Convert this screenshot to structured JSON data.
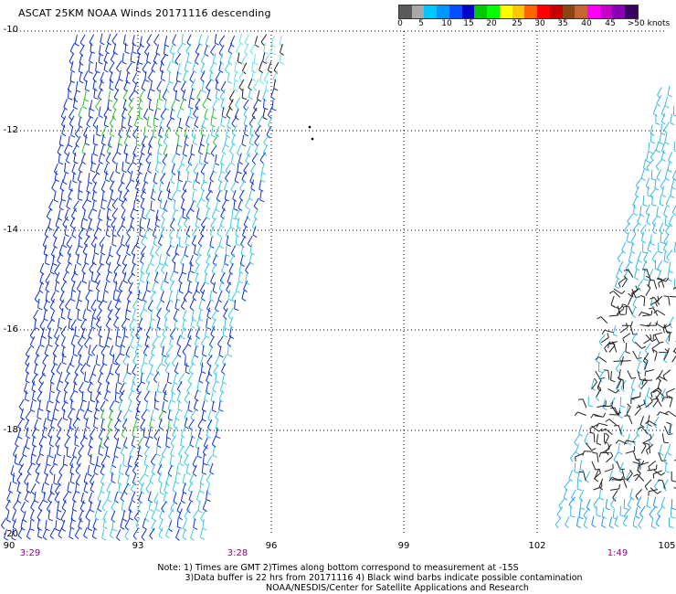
{
  "title": "ASCAT 25KM NOAA Winds 20171116 descending",
  "colorbar": {
    "colors": [
      "#5a5a5a",
      "#a8a8a8",
      "#00c8ff",
      "#0096ff",
      "#0050ff",
      "#0000c8",
      "#00c800",
      "#00ff00",
      "#ffff00",
      "#ffc800",
      "#ff6400",
      "#ff0000",
      "#c80000",
      "#8b4513",
      "#c86432",
      "#ff00ff",
      "#c800c8",
      "#8b00b4",
      "#3c0064"
    ],
    "labels": [
      "0",
      "5",
      "10",
      "15",
      "20",
      "25",
      "30",
      "35",
      "40",
      "45",
      ">50 knots"
    ]
  },
  "map": {
    "lat_labels": [
      "-10",
      "-12",
      "-14",
      "-16",
      "-18",
      "-20"
    ],
    "lon_labels": [
      "90",
      "93",
      "96",
      "99",
      "102",
      "105"
    ],
    "time_labels": [
      "3:29",
      "3:28",
      "1:49"
    ]
  },
  "notes": [
    "Note: 1) Times are GMT 2)Times along bottom correspond to measurement at -15S",
    "3)Data buffer is 22 hrs from 20171116 4) Black wind barbs indicate possible contamination",
    "NOAA/NESDIS/Center for Satellite Applications and Research"
  ]
}
